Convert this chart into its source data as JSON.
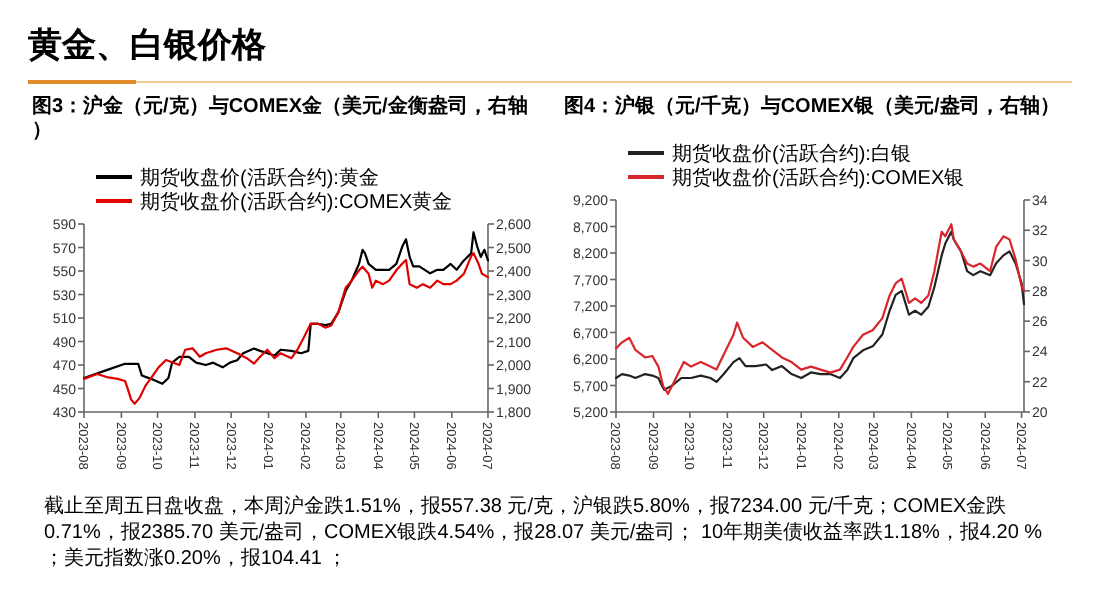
{
  "chart_data": [
    {
      "type": "other",
      "title": "黄金、白银价格",
      "annotations": [
        "截止至周五日盘收盘，本周沪金跌1.51%，报557.38 元/克，沪银跌5.80%，报7234.00 元/千克；COMEX金跌0.71%，报2385.70 美元/盎司，COMEX银跌4.54%，报28.07 美元/盎司； 10年期美债收益率跌1.18%，报4.20 %；美元指数涨0.20%，报104.41 ；"
      ]
    },
    {
      "type": "line",
      "title": "图3：沪金（元/克）与COMEX金（美元/金衡盎司，右轴）",
      "legend": "top",
      "xlim": [
        "2023-08-01",
        "2024-07-01"
      ],
      "xticks": [
        "2023-08",
        "2023-09",
        "2023-10",
        "2023-11",
        "2023-12",
        "2024-01",
        "2024-02",
        "2024-03",
        "2024-04",
        "2024-05",
        "2024-06",
        "2024-07"
      ],
      "ylim": [
        430,
        590
      ],
      "yticks": [
        430,
        450,
        470,
        490,
        510,
        530,
        550,
        570,
        590
      ],
      "y2lim": [
        1800,
        2600
      ],
      "y2ticks": [
        {
          "value": 1800,
          "label": "1,800"
        },
        {
          "value": 1900,
          "label": "1,900"
        },
        {
          "value": 2000,
          "label": "2,000"
        },
        {
          "value": 2100,
          "label": "2,100"
        },
        {
          "value": 2200,
          "label": "2,200"
        },
        {
          "value": 2300,
          "label": "2,300"
        },
        {
          "value": 2400,
          "label": "2,400"
        },
        {
          "value": 2500,
          "label": "2,500"
        },
        {
          "value": 2600,
          "label": "2,600"
        }
      ],
      "series": [
        {
          "name": "期货收盘价(活跃合约):黄金",
          "color": "#000000",
          "x": [
            "2023-08-01",
            "2023-08-18",
            "2023-09-04",
            "2023-09-15",
            "2023-09-18",
            "2023-09-26",
            "2023-10-05",
            "2023-10-10",
            "2023-10-13",
            "2023-10-19",
            "2023-10-27",
            "2023-11-02",
            "2023-11-10",
            "2023-11-16",
            "2023-11-24",
            "2023-11-30",
            "2023-12-06",
            "2023-12-11",
            "2023-12-20",
            "2023-12-25",
            "2023-12-31",
            "2024-01-06",
            "2024-01-11",
            "2024-01-20",
            "2024-01-28",
            "2024-02-03",
            "2024-02-05",
            "2024-02-11",
            "2024-02-17",
            "2024-02-22",
            "2024-02-28",
            "2024-03-05",
            "2024-03-10",
            "2024-03-16",
            "2024-03-19",
            "2024-03-21",
            "2024-03-24",
            "2024-03-30",
            "2024-04-05",
            "2024-04-10",
            "2024-04-16",
            "2024-04-21",
            "2024-04-24",
            "2024-04-27",
            "2024-04-30",
            "2024-05-05",
            "2024-05-14",
            "2024-05-20",
            "2024-05-25",
            "2024-05-31",
            "2024-06-05",
            "2024-06-11",
            "2024-06-17",
            "2024-06-19",
            "2024-06-22",
            "2024-06-25",
            "2024-06-28",
            "2024-07-01"
          ],
          "values": [
            459,
            465,
            471,
            471,
            461,
            458,
            454,
            459,
            472,
            477,
            477,
            472,
            470,
            472,
            468,
            472,
            474,
            480,
            484,
            482,
            480,
            478,
            483,
            482,
            480,
            482,
            505,
            505,
            504,
            505,
            515,
            533,
            542,
            556,
            568,
            565,
            556,
            551,
            551,
            551,
            556,
            571,
            577,
            562,
            554,
            554,
            548,
            551,
            551,
            556,
            551,
            559,
            565,
            583,
            571,
            562,
            568,
            559
          ]
        },
        {
          "name": "期货收盘价(活跃合约):COMEX黄金",
          "color": "#e00000",
          "axis": "y2",
          "x": [
            "2023-08-01",
            "2023-08-12",
            "2023-08-21",
            "2023-08-29",
            "2023-09-04",
            "2023-09-07",
            "2023-09-09",
            "2023-09-12",
            "2023-09-16",
            "2023-09-21",
            "2023-09-26",
            "2023-10-02",
            "2023-10-08",
            "2023-10-13",
            "2023-10-19",
            "2023-10-24",
            "2023-10-30",
            "2023-11-05",
            "2023-11-10",
            "2023-11-19",
            "2023-11-27",
            "2023-12-06",
            "2023-12-14",
            "2023-12-20",
            "2023-12-25",
            "2023-12-31",
            "2024-01-06",
            "2024-01-11",
            "2024-01-20",
            "2024-01-25",
            "2024-01-31",
            "2024-02-05",
            "2024-02-11",
            "2024-02-17",
            "2024-02-22",
            "2024-02-28",
            "2024-03-05",
            "2024-03-10",
            "2024-03-16",
            "2024-03-19",
            "2024-03-24",
            "2024-03-27",
            "2024-03-30",
            "2024-04-05",
            "2024-04-10",
            "2024-04-16",
            "2024-04-21",
            "2024-04-24",
            "2024-04-27",
            "2024-05-03",
            "2024-05-08",
            "2024-05-14",
            "2024-05-20",
            "2024-05-25",
            "2024-05-31",
            "2024-06-05",
            "2024-06-11",
            "2024-06-17",
            "2024-06-19",
            "2024-06-23",
            "2024-06-26",
            "2024-07-01"
          ],
          "values": [
            1941,
            1962,
            1947,
            1941,
            1932,
            1888,
            1853,
            1835,
            1859,
            1912,
            1947,
            1991,
            2021,
            2012,
            2000,
            2065,
            2071,
            2035,
            2050,
            2065,
            2071,
            2050,
            2029,
            2006,
            2035,
            2065,
            2029,
            2050,
            2029,
            2065,
            2124,
            2176,
            2176,
            2159,
            2168,
            2226,
            2329,
            2359,
            2403,
            2418,
            2388,
            2329,
            2359,
            2344,
            2359,
            2403,
            2432,
            2447,
            2344,
            2329,
            2344,
            2329,
            2359,
            2344,
            2344,
            2359,
            2388,
            2462,
            2476,
            2432,
            2388,
            2374
          ]
        }
      ]
    },
    {
      "type": "line",
      "title": "图4：沪银（元/千克）与COMEX银（美元/盎司，右轴）",
      "legend": "top",
      "xlim": [
        "2023-08-01",
        "2024-07-03"
      ],
      "xticks": [
        "2023-08",
        "2023-09",
        "2023-10",
        "2023-11",
        "2023-12",
        "2024-01",
        "2024-02",
        "2024-03",
        "2024-04",
        "2024-05",
        "2024-06",
        "2024-07"
      ],
      "ylim": [
        5200,
        9200
      ],
      "yticks": [
        {
          "value": 5200,
          "label": "5,200"
        },
        {
          "value": 5700,
          "label": "5,700"
        },
        {
          "value": 6200,
          "label": "6,200"
        },
        {
          "value": 6700,
          "label": "6,700"
        },
        {
          "value": 7200,
          "label": "7,200"
        },
        {
          "value": 7700,
          "label": "7,700"
        },
        {
          "value": 8200,
          "label": "8,200"
        },
        {
          "value": 8700,
          "label": "8,700"
        },
        {
          "value": 9200,
          "label": "9,200"
        }
      ],
      "y2lim": [
        20,
        34
      ],
      "y2ticks": [
        20,
        22,
        24,
        26,
        28,
        30,
        32,
        34
      ],
      "series": [
        {
          "name": "期货收盘价(活跃合约):白银",
          "color": "#222222",
          "x": [
            "2023-08-01",
            "2023-08-06",
            "2023-08-12",
            "2023-08-17",
            "2023-08-25",
            "2023-08-31",
            "2023-09-05",
            "2023-09-08",
            "2023-09-10",
            "2023-09-16",
            "2023-09-24",
            "2023-10-02",
            "2023-10-10",
            "2023-10-18",
            "2023-10-23",
            "2023-10-29",
            "2023-11-06",
            "2023-11-11",
            "2023-11-16",
            "2023-11-24",
            "2023-12-03",
            "2023-12-08",
            "2023-12-16",
            "2023-12-24",
            "2024-01-01",
            "2024-01-09",
            "2024-01-17",
            "2024-01-25",
            "2024-02-02",
            "2024-02-08",
            "2024-02-13",
            "2024-02-21",
            "2024-02-29",
            "2024-03-08",
            "2024-03-14",
            "2024-03-19",
            "2024-03-24",
            "2024-03-30",
            "2024-04-04",
            "2024-04-09",
            "2024-04-15",
            "2024-04-20",
            "2024-04-26",
            "2024-04-29",
            "2024-05-04",
            "2024-05-06",
            "2024-05-12",
            "2024-05-17",
            "2024-05-22",
            "2024-05-28",
            "2024-06-05",
            "2024-06-10",
            "2024-06-16",
            "2024-06-21",
            "2024-06-26",
            "2024-07-01",
            "2024-07-03"
          ],
          "values": [
            5842,
            5916,
            5887,
            5842,
            5916,
            5887,
            5842,
            5693,
            5618,
            5693,
            5842,
            5842,
            5887,
            5842,
            5767,
            5916,
            6140,
            6215,
            6066,
            6066,
            6096,
            5991,
            6066,
            5916,
            5842,
            5946,
            5916,
            5916,
            5842,
            5991,
            6215,
            6364,
            6439,
            6663,
            7110,
            7409,
            7484,
            7036,
            7110,
            7036,
            7185,
            7558,
            8155,
            8379,
            8603,
            8454,
            8230,
            7857,
            7782,
            7857,
            7782,
            8006,
            8155,
            8230,
            8006,
            7633,
            7234
          ]
        },
        {
          "name": "期货收盘价(活跃合约):COMEX银",
          "color": "#d9262c",
          "axis": "y2",
          "x": [
            "2023-08-01",
            "2023-08-06",
            "2023-08-12",
            "2023-08-17",
            "2023-08-25",
            "2023-08-31",
            "2023-09-05",
            "2023-09-09",
            "2023-09-13",
            "2023-09-18",
            "2023-09-26",
            "2023-10-02",
            "2023-10-10",
            "2023-10-18",
            "2023-10-23",
            "2023-10-29",
            "2023-11-06",
            "2023-11-09",
            "2023-11-14",
            "2023-11-22",
            "2023-11-30",
            "2023-12-08",
            "2023-12-16",
            "2023-12-24",
            "2024-01-01",
            "2024-01-09",
            "2024-01-17",
            "2024-01-25",
            "2024-02-02",
            "2024-02-08",
            "2024-02-13",
            "2024-02-21",
            "2024-02-29",
            "2024-03-08",
            "2024-03-14",
            "2024-03-19",
            "2024-03-24",
            "2024-03-30",
            "2024-04-04",
            "2024-04-09",
            "2024-04-15",
            "2024-04-20",
            "2024-04-26",
            "2024-04-29",
            "2024-05-04",
            "2024-05-06",
            "2024-05-12",
            "2024-05-17",
            "2024-05-22",
            "2024-05-28",
            "2024-06-05",
            "2024-06-10",
            "2024-06-16",
            "2024-06-21",
            "2024-06-26",
            "2024-07-01",
            "2024-07-03"
          ],
          "values": [
            24.2,
            24.6,
            24.9,
            24.1,
            23.6,
            23.7,
            23.0,
            21.7,
            21.2,
            22.0,
            23.3,
            23.0,
            23.3,
            23.0,
            22.8,
            23.8,
            25.1,
            25.9,
            24.9,
            24.3,
            24.6,
            24.1,
            23.6,
            23.3,
            22.8,
            23.0,
            22.8,
            22.6,
            22.8,
            23.6,
            24.3,
            25.1,
            25.4,
            26.2,
            27.7,
            28.5,
            28.8,
            27.2,
            27.5,
            27.2,
            27.7,
            29.3,
            31.9,
            31.6,
            32.4,
            31.4,
            30.6,
            29.8,
            29.6,
            29.8,
            29.3,
            30.9,
            31.6,
            31.4,
            30.1,
            28.3,
            28.0
          ]
        }
      ]
    }
  ]
}
